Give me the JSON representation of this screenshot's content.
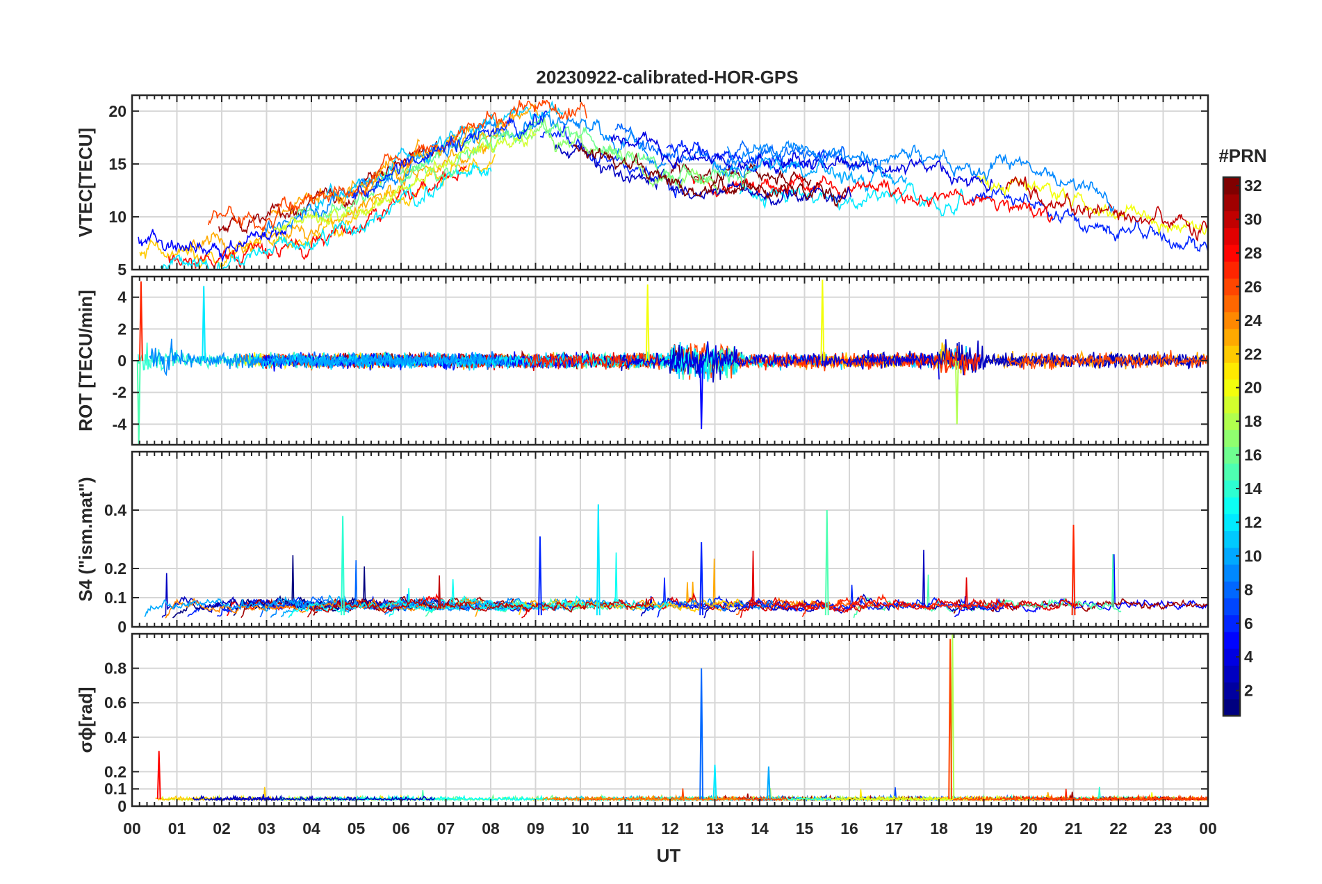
{
  "figure": {
    "title": "20230922-calibrated-HOR-GPS",
    "xlabel": "UT",
    "x_tick_labels": [
      "00",
      "01",
      "02",
      "03",
      "04",
      "05",
      "06",
      "07",
      "08",
      "09",
      "10",
      "11",
      "12",
      "13",
      "14",
      "15",
      "16",
      "17",
      "18",
      "19",
      "20",
      "21",
      "22",
      "23",
      "00"
    ],
    "colorbar": {
      "label": "#PRN",
      "min": 1,
      "max": 32,
      "tick_labels": [
        "2",
        "4",
        "6",
        "8",
        "10",
        "12",
        "14",
        "16",
        "18",
        "20",
        "22",
        "24",
        "26",
        "28",
        "30",
        "32"
      ],
      "colormap": "jet"
    }
  },
  "chart_data": [
    {
      "type": "line",
      "ylabel": "VTEC[TECU]",
      "xlim": [
        0,
        24
      ],
      "ylim": [
        5,
        21.5
      ],
      "y_tick_labels": [
        "5",
        "10",
        "15",
        "20"
      ],
      "grid": true,
      "series_by": "PRN",
      "pattern": "diurnal trend per PRN track: ~6-10 TECU at 00-04 UT, rising to ~15-21 TECU at 09-12 UT, ~12-15 TECU at 13-20 UT, ~5-12 TECU at 21-24 UT"
    },
    {
      "type": "line",
      "ylabel": "ROT [TECU/min]",
      "xlim": [
        0,
        24
      ],
      "ylim": [
        -5.3,
        5.3
      ],
      "y_tick_labels": [
        "-4",
        "-2",
        "0",
        "2",
        "4"
      ],
      "grid": true,
      "series_by": "PRN",
      "pattern": "fluctuating around 0, typically within ±1.5; spikes near 00.2 UT (≈5, ≈-5.3), 11.5 UT (≈4.8), 12.7 UT (≈-4.3), 15.4 UT (≈5.1), 18.4 UT (≈-4)"
    },
    {
      "type": "line",
      "ylabel": "S4 (\"ism.mat\")",
      "xlim": [
        0,
        24
      ],
      "ylim": [
        0,
        0.6
      ],
      "y_tick_labels": [
        "0",
        "0.1",
        "0.2",
        "0.4"
      ],
      "grid": true,
      "series_by": "PRN",
      "pattern": "baseline ≈0.02-0.08; peaks ≈0.38 at 04.7, 0.42 at 10.4, 0.40 at 15.5, 0.35 at 21 UT"
    },
    {
      "type": "line",
      "ylabel": "σϕ[rad]",
      "xlim": [
        0,
        24
      ],
      "ylim": [
        0,
        1.0
      ],
      "y_tick_labels": [
        "0",
        "0.1",
        "0.2",
        "0.4",
        "0.6",
        "0.8"
      ],
      "grid": true,
      "series_by": "PRN",
      "pattern": "baseline ≈0.02-0.08; spikes ≈0.32 at 00.6 UT, ≈0.8 at 12.7 UT, ≈1.0 at 18.3 UT"
    }
  ]
}
